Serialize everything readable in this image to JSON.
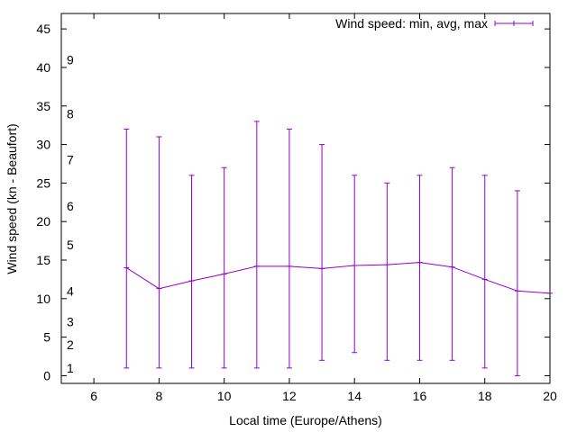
{
  "chart_data": {
    "type": "line",
    "title": "",
    "xlabel": "Local time (Europe/Athens)",
    "ylabel": "Wind speed (kn - Beaufort)",
    "xlim": [
      5,
      20
    ],
    "ylim": [
      -1,
      47
    ],
    "x_ticks": [
      6,
      8,
      10,
      12,
      14,
      16,
      18,
      20
    ],
    "y_ticks": [
      0,
      5,
      10,
      15,
      20,
      25,
      30,
      35,
      40,
      45
    ],
    "beaufort_labels": [
      {
        "label": "1",
        "value": 1
      },
      {
        "label": "2",
        "value": 4
      },
      {
        "label": "3",
        "value": 7
      },
      {
        "label": "4",
        "value": 11
      },
      {
        "label": "5",
        "value": 17
      },
      {
        "label": "6",
        "value": 22
      },
      {
        "label": "7",
        "value": 28
      },
      {
        "label": "8",
        "value": 34
      },
      {
        "label": "9",
        "value": 41
      }
    ],
    "grid": false,
    "legend": {
      "label": "Wind speed: min, avg, max",
      "position": "top-right"
    },
    "series": [
      {
        "name": "Wind speed: min, avg, max",
        "color": "#9400d3",
        "x": [
          7,
          8,
          9,
          10,
          11,
          12,
          13,
          14,
          15,
          16,
          17,
          18,
          19,
          20
        ],
        "avg": [
          14.0,
          11.3,
          12.3,
          13.2,
          14.2,
          14.2,
          13.9,
          14.3,
          14.4,
          14.7,
          14.1,
          12.5,
          11.0,
          10.7
        ],
        "min": [
          1,
          1,
          1,
          1,
          1,
          1,
          2,
          3,
          2,
          2,
          2,
          1,
          0,
          null
        ],
        "max": [
          32,
          31,
          26,
          27,
          33,
          32,
          30,
          26,
          25,
          26,
          27,
          26,
          24,
          null
        ]
      }
    ]
  }
}
